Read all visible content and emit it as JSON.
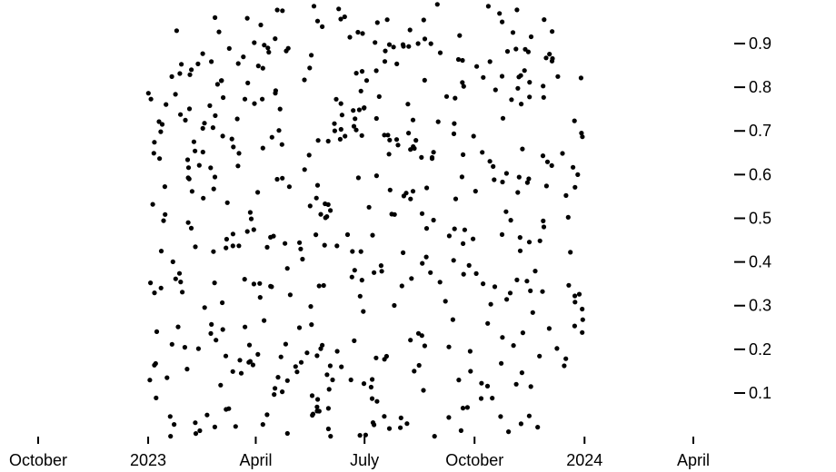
{
  "chart_data": {
    "type": "scatter",
    "title": "",
    "xlabel": "",
    "ylabel": "",
    "x_axis": {
      "scale": "time",
      "range": [
        "2022-10-01",
        "2024-04-01"
      ],
      "tick_labels": [
        "October",
        "2023",
        "April",
        "July",
        "October",
        "2024",
        "April"
      ],
      "position": "bottom"
    },
    "y_axis": {
      "range": [
        0.0,
        1.0
      ],
      "tick_labels": [
        "0.1",
        "0.2",
        "0.3",
        "0.4",
        "0.5",
        "0.6",
        "0.7",
        "0.8",
        "0.9"
      ],
      "position": "right"
    },
    "grid": false,
    "legend": "none",
    "marker_color": "#000000",
    "point_count": 500,
    "x_domain": [
      "2023-01-01",
      "2023-12-31"
    ]
  }
}
